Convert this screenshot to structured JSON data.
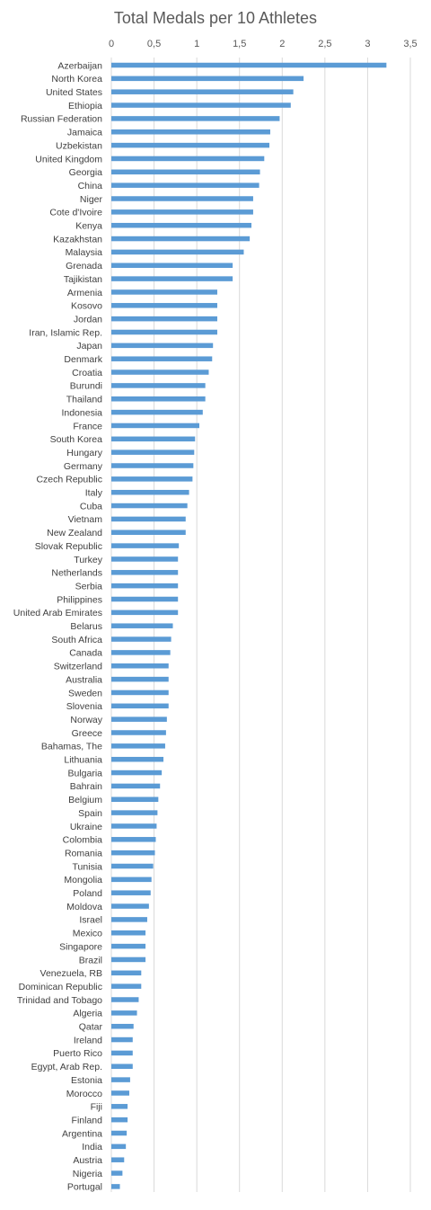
{
  "chart_data": {
    "type": "bar",
    "orientation": "horizontal",
    "title": "Total Medals per 10 Athletes",
    "xlabel": "",
    "ylabel": "",
    "xlim": [
      0,
      3.5
    ],
    "x_ticks": [
      "0",
      "0,5",
      "1",
      "1,5",
      "2",
      "2,5",
      "3",
      "3,5"
    ],
    "grid": true,
    "legend": "none",
    "bar_color": "#5b9bd5",
    "categories": [
      "Azerbaijan",
      "North Korea",
      "United States",
      "Ethiopia",
      "Russian Federation",
      "Jamaica",
      "Uzbekistan",
      "United Kingdom",
      "Georgia",
      "China",
      "Niger",
      "Cote d'Ivoire",
      "Kenya",
      "Kazakhstan",
      "Malaysia",
      "Grenada",
      "Tajikistan",
      "Armenia",
      "Kosovo",
      "Jordan",
      "Iran, Islamic Rep.",
      "Japan",
      "Denmark",
      "Croatia",
      "Burundi",
      "Thailand",
      "Indonesia",
      "France",
      "South Korea",
      "Hungary",
      "Germany",
      "Czech Republic",
      "Italy",
      "Cuba",
      "Vietnam",
      "New Zealand",
      "Slovak Republic",
      "Turkey",
      "Netherlands",
      "Serbia",
      "Philippines",
      "United Arab Emirates",
      "Belarus",
      "South Africa",
      "Canada",
      "Switzerland",
      "Australia",
      "Sweden",
      "Slovenia",
      "Norway",
      "Greece",
      "Bahamas, The",
      "Lithuania",
      "Bulgaria",
      "Bahrain",
      "Belgium",
      "Spain",
      "Ukraine",
      "Colombia",
      "Romania",
      "Tunisia",
      "Mongolia",
      "Poland",
      "Moldova",
      "Israel",
      "Mexico",
      "Singapore",
      "Brazil",
      "Venezuela, RB",
      "Dominican Republic",
      "Trinidad and Tobago",
      "Algeria",
      "Qatar",
      "Ireland",
      "Puerto Rico",
      "Egypt, Arab Rep.",
      "Estonia",
      "Morocco",
      "Fiji",
      "Finland",
      "Argentina",
      "India",
      "Austria",
      "Nigeria",
      "Portugal"
    ],
    "values": [
      3.22,
      2.25,
      2.13,
      2.1,
      1.97,
      1.86,
      1.85,
      1.79,
      1.74,
      1.73,
      1.66,
      1.66,
      1.64,
      1.62,
      1.55,
      1.42,
      1.42,
      1.24,
      1.24,
      1.24,
      1.24,
      1.19,
      1.18,
      1.14,
      1.1,
      1.1,
      1.07,
      1.03,
      0.98,
      0.97,
      0.96,
      0.95,
      0.91,
      0.89,
      0.87,
      0.87,
      0.79,
      0.78,
      0.78,
      0.78,
      0.78,
      0.78,
      0.72,
      0.7,
      0.69,
      0.67,
      0.67,
      0.67,
      0.67,
      0.65,
      0.64,
      0.63,
      0.61,
      0.59,
      0.57,
      0.55,
      0.54,
      0.53,
      0.52,
      0.51,
      0.49,
      0.47,
      0.46,
      0.44,
      0.42,
      0.4,
      0.4,
      0.4,
      0.35,
      0.35,
      0.32,
      0.3,
      0.26,
      0.25,
      0.25,
      0.25,
      0.22,
      0.21,
      0.19,
      0.19,
      0.18,
      0.17,
      0.15,
      0.13,
      0.1
    ]
  }
}
